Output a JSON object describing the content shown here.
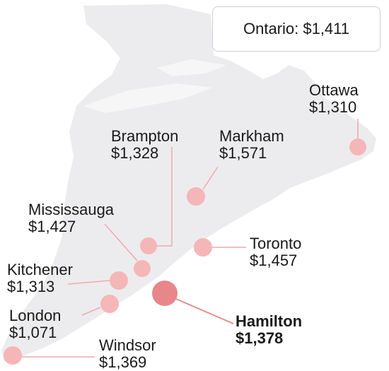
{
  "total": {
    "label": "Ontario: $1,411"
  },
  "colors": {
    "land": "#ececee",
    "marker": "#f5b6b8",
    "marker_highlight": "#e8878a",
    "leader": "#f2a9ac",
    "leader_highlight": "#e68a8d"
  },
  "cities": [
    {
      "key": "ottawa",
      "name": "Ottawa",
      "price": "$1,310",
      "highlight": false
    },
    {
      "key": "markham",
      "name": "Markham",
      "price": "$1,571",
      "highlight": false
    },
    {
      "key": "brampton",
      "name": "Brampton",
      "price": "$1,328",
      "highlight": false
    },
    {
      "key": "mississauga",
      "name": "Mississauga",
      "price": "$1,427",
      "highlight": false
    },
    {
      "key": "toronto",
      "name": "Toronto",
      "price": "$1,457",
      "highlight": false
    },
    {
      "key": "kitchener",
      "name": "Kitchener",
      "price": "$1,313",
      "highlight": false
    },
    {
      "key": "london",
      "name": "London",
      "price": "$1,071",
      "highlight": false
    },
    {
      "key": "hamilton",
      "name": "Hamilton",
      "price": "$1,378",
      "highlight": true
    },
    {
      "key": "windsor",
      "name": "Windsor",
      "price": "$1,369",
      "highlight": false
    }
  ]
}
